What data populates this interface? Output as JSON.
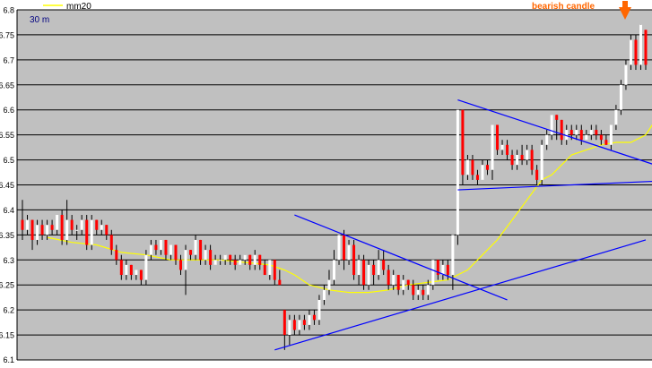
{
  "chart_data": {
    "type": "candlestick",
    "title": "",
    "timeframe_label": "30 m",
    "legend": [
      {
        "name": "mm20",
        "color": "#ffff00"
      }
    ],
    "annotation": {
      "text": "bearish candle",
      "color": "#ff6600"
    },
    "ylim": [
      6.1,
      6.8
    ],
    "y_ticks": [
      "6.1",
      "6.15",
      "6.2",
      "6.25",
      "6.3",
      "6.35",
      "6.4",
      "6.45",
      "6.5",
      "6.55",
      "6.6",
      "6.65",
      "6.7",
      "6.75",
      "6.8"
    ],
    "grid": true,
    "colors": {
      "plot_background": "#c0c0c0",
      "bull_candle": "#ffffff",
      "bear_candle": "#ff0000",
      "wick": "#000000",
      "trendline": "#0000ff",
      "moving_average": "#ffff00",
      "annotation_arrow": "#ff6600"
    },
    "candles": [
      [
        6.38,
        6.36,
        6.42,
        6.34
      ],
      [
        6.36,
        6.38,
        6.39,
        6.35
      ],
      [
        6.38,
        6.34,
        6.38,
        6.32
      ],
      [
        6.34,
        6.37,
        6.38,
        6.33
      ],
      [
        6.37,
        6.35,
        6.38,
        6.34
      ],
      [
        6.35,
        6.37,
        6.38,
        6.34
      ],
      [
        6.37,
        6.36,
        6.38,
        6.35
      ],
      [
        6.36,
        6.39,
        6.39,
        6.35
      ],
      [
        6.39,
        6.34,
        6.4,
        6.33
      ],
      [
        6.34,
        6.38,
        6.42,
        6.33
      ],
      [
        6.38,
        6.36,
        6.39,
        6.35
      ],
      [
        6.36,
        6.36,
        6.37,
        6.34
      ],
      [
        6.36,
        6.38,
        6.39,
        6.35
      ],
      [
        6.38,
        6.33,
        6.39,
        6.32
      ],
      [
        6.33,
        6.38,
        6.39,
        6.32
      ],
      [
        6.38,
        6.36,
        6.38,
        6.35
      ],
      [
        6.36,
        6.37,
        6.38,
        6.35
      ],
      [
        6.37,
        6.35,
        6.37,
        6.34
      ],
      [
        6.35,
        6.32,
        6.36,
        6.31
      ],
      [
        6.32,
        6.3,
        6.33,
        6.29
      ],
      [
        6.3,
        6.27,
        6.31,
        6.26
      ],
      [
        6.27,
        6.29,
        6.3,
        6.26
      ],
      [
        6.29,
        6.27,
        6.29,
        6.26
      ],
      [
        6.27,
        6.28,
        6.28,
        6.26
      ],
      [
        6.28,
        6.26,
        6.28,
        6.25
      ],
      [
        6.26,
        6.31,
        6.32,
        6.25
      ],
      [
        6.31,
        6.33,
        6.34,
        6.3
      ],
      [
        6.33,
        6.32,
        6.34,
        6.31
      ],
      [
        6.32,
        6.34,
        6.34,
        6.31
      ],
      [
        6.34,
        6.31,
        6.34,
        6.3
      ],
      [
        6.31,
        6.33,
        6.33,
        6.3
      ],
      [
        6.33,
        6.3,
        6.33,
        6.29
      ],
      [
        6.3,
        6.28,
        6.31,
        6.27
      ],
      [
        6.28,
        6.32,
        6.33,
        6.23
      ],
      [
        6.32,
        6.31,
        6.32,
        6.3
      ],
      [
        6.31,
        6.34,
        6.35,
        6.3
      ],
      [
        6.34,
        6.3,
        6.34,
        6.29
      ],
      [
        6.3,
        6.32,
        6.33,
        6.29
      ],
      [
        6.32,
        6.29,
        6.33,
        6.28
      ],
      [
        6.29,
        6.3,
        6.31,
        6.29
      ],
      [
        6.3,
        6.3,
        6.31,
        6.29
      ],
      [
        6.3,
        6.31,
        6.31,
        6.29
      ],
      [
        6.31,
        6.3,
        6.31,
        6.29
      ],
      [
        6.3,
        6.29,
        6.31,
        6.28
      ],
      [
        6.29,
        6.3,
        6.31,
        6.29
      ],
      [
        6.3,
        6.31,
        6.31,
        6.29
      ],
      [
        6.31,
        6.29,
        6.31,
        6.28
      ],
      [
        6.29,
        6.31,
        6.32,
        6.28
      ],
      [
        6.31,
        6.29,
        6.31,
        6.28
      ],
      [
        6.29,
        6.27,
        6.3,
        6.27
      ],
      [
        6.27,
        6.3,
        6.3,
        6.26
      ],
      [
        6.3,
        6.26,
        6.3,
        6.25
      ],
      [
        6.26,
        6.25,
        6.28,
        6.25
      ],
      [
        6.2,
        6.15,
        6.2,
        6.12
      ],
      [
        6.15,
        6.18,
        6.19,
        6.13
      ],
      [
        6.18,
        6.16,
        6.19,
        6.15
      ],
      [
        6.16,
        6.18,
        6.19,
        6.15
      ],
      [
        6.18,
        6.17,
        6.19,
        6.16
      ],
      [
        6.17,
        6.19,
        6.2,
        6.16
      ],
      [
        6.19,
        6.18,
        6.2,
        6.17
      ],
      [
        6.18,
        6.22,
        6.23,
        6.17
      ],
      [
        6.22,
        6.24,
        6.25,
        6.21
      ],
      [
        6.24,
        6.26,
        6.28,
        6.23
      ],
      [
        6.26,
        6.3,
        6.32,
        6.25
      ],
      [
        6.3,
        6.35,
        6.35,
        6.29
      ],
      [
        6.35,
        6.3,
        6.36,
        6.28
      ],
      [
        6.3,
        6.33,
        6.34,
        6.29
      ],
      [
        6.33,
        6.27,
        6.34,
        6.26
      ],
      [
        6.27,
        6.3,
        6.31,
        6.25
      ],
      [
        6.3,
        6.25,
        6.31,
        6.24
      ],
      [
        6.25,
        6.29,
        6.3,
        6.24
      ],
      [
        6.29,
        6.27,
        6.3,
        6.25
      ],
      [
        6.27,
        6.3,
        6.32,
        6.26
      ],
      [
        6.3,
        6.28,
        6.32,
        6.27
      ],
      [
        6.28,
        6.25,
        6.29,
        6.24
      ],
      [
        6.25,
        6.27,
        6.28,
        6.24
      ],
      [
        6.27,
        6.24,
        6.27,
        6.23
      ],
      [
        6.24,
        6.26,
        6.27,
        6.23
      ],
      [
        6.26,
        6.25,
        6.26,
        6.24
      ],
      [
        6.25,
        6.23,
        6.26,
        6.22
      ],
      [
        6.23,
        6.24,
        6.25,
        6.22
      ],
      [
        6.24,
        6.23,
        6.25,
        6.22
      ],
      [
        6.23,
        6.25,
        6.26,
        6.22
      ],
      [
        6.25,
        6.3,
        6.3,
        6.24
      ],
      [
        6.3,
        6.27,
        6.3,
        6.26
      ],
      [
        6.27,
        6.29,
        6.3,
        6.26
      ],
      [
        6.29,
        6.27,
        6.3,
        6.26
      ],
      [
        6.27,
        6.35,
        6.35,
        6.24
      ],
      [
        6.35,
        6.6,
        6.6,
        6.33
      ],
      [
        6.6,
        6.47,
        6.6,
        6.45
      ],
      [
        6.47,
        6.5,
        6.51,
        6.46
      ],
      [
        6.5,
        6.47,
        6.51,
        6.46
      ],
      [
        6.47,
        6.46,
        6.48,
        6.45
      ],
      [
        6.46,
        6.49,
        6.5,
        6.46
      ],
      [
        6.49,
        6.48,
        6.5,
        6.47
      ],
      [
        6.48,
        6.57,
        6.57,
        6.46
      ],
      [
        6.57,
        6.52,
        6.57,
        6.51
      ],
      [
        6.52,
        6.53,
        6.54,
        6.51
      ],
      [
        6.53,
        6.51,
        6.54,
        6.5
      ],
      [
        6.51,
        6.49,
        6.52,
        6.48
      ],
      [
        6.49,
        6.51,
        6.52,
        6.48
      ],
      [
        6.51,
        6.5,
        6.53,
        6.49
      ],
      [
        6.5,
        6.52,
        6.53,
        6.49
      ],
      [
        6.52,
        6.48,
        6.53,
        6.47
      ],
      [
        6.48,
        6.46,
        6.49,
        6.45
      ],
      [
        6.46,
        6.53,
        6.54,
        6.45
      ],
      [
        6.53,
        6.55,
        6.56,
        6.52
      ],
      [
        6.55,
        6.59,
        6.59,
        6.54
      ],
      [
        6.59,
        6.58,
        6.59,
        6.54
      ],
      [
        6.58,
        6.54,
        6.58,
        6.53
      ],
      [
        6.54,
        6.56,
        6.57,
        6.53
      ],
      [
        6.56,
        6.55,
        6.57,
        6.54
      ],
      [
        6.55,
        6.56,
        6.57,
        6.54
      ],
      [
        6.56,
        6.54,
        6.57,
        6.53
      ],
      [
        6.54,
        6.55,
        6.56,
        6.54
      ],
      [
        6.55,
        6.56,
        6.57,
        6.54
      ],
      [
        6.56,
        6.55,
        6.57,
        6.54
      ],
      [
        6.55,
        6.54,
        6.56,
        6.53
      ],
      [
        6.54,
        6.53,
        6.55,
        6.53
      ],
      [
        6.53,
        6.57,
        6.57,
        6.52
      ],
      [
        6.57,
        6.6,
        6.61,
        6.56
      ],
      [
        6.6,
        6.65,
        6.66,
        6.59
      ],
      [
        6.65,
        6.69,
        6.7,
        6.64
      ],
      [
        6.69,
        6.74,
        6.75,
        6.68
      ],
      [
        6.74,
        6.69,
        6.75,
        6.68
      ],
      [
        6.69,
        6.77,
        6.77,
        6.68
      ],
      [
        6.76,
        6.69,
        6.76,
        6.68
      ]
    ],
    "mm20": [
      [
        5,
        6.345
      ],
      [
        10,
        6.335
      ],
      [
        15,
        6.33
      ],
      [
        20,
        6.315
      ],
      [
        25,
        6.31
      ],
      [
        30,
        6.3
      ],
      [
        35,
        6.3
      ],
      [
        40,
        6.3
      ],
      [
        45,
        6.295
      ],
      [
        50,
        6.29
      ],
      [
        53,
        6.28
      ],
      [
        55,
        6.27
      ],
      [
        58,
        6.25
      ],
      [
        62,
        6.24
      ],
      [
        66,
        6.235
      ],
      [
        70,
        6.235
      ],
      [
        74,
        6.24
      ],
      [
        78,
        6.25
      ],
      [
        82,
        6.255
      ],
      [
        86,
        6.26
      ],
      [
        88,
        6.27
      ],
      [
        90,
        6.28
      ],
      [
        93,
        6.31
      ],
      [
        96,
        6.34
      ],
      [
        99,
        6.38
      ],
      [
        102,
        6.42
      ],
      [
        105,
        6.46
      ],
      [
        107,
        6.47
      ],
      [
        109,
        6.49
      ],
      [
        111,
        6.51
      ],
      [
        114,
        6.52
      ],
      [
        117,
        6.53
      ],
      [
        120,
        6.535
      ],
      [
        123,
        6.535
      ],
      [
        126,
        6.55
      ],
      [
        128,
        6.58
      ],
      [
        130,
        6.59
      ],
      [
        132,
        6.6
      ]
    ],
    "trendlines": [
      {
        "name": "lower-rising-support",
        "from": [
          51,
          6.12
        ],
        "to": [
          126,
          6.34
        ]
      },
      {
        "name": "falling-resistance",
        "from": [
          55,
          6.39
        ],
        "to": [
          98,
          6.22
        ]
      },
      {
        "name": "upper-falling-resistance",
        "from": [
          88,
          6.62
        ],
        "to": [
          134,
          6.47
        ]
      },
      {
        "name": "flat-support",
        "from": [
          88,
          6.44
        ],
        "to": [
          134,
          6.46
        ]
      }
    ]
  }
}
